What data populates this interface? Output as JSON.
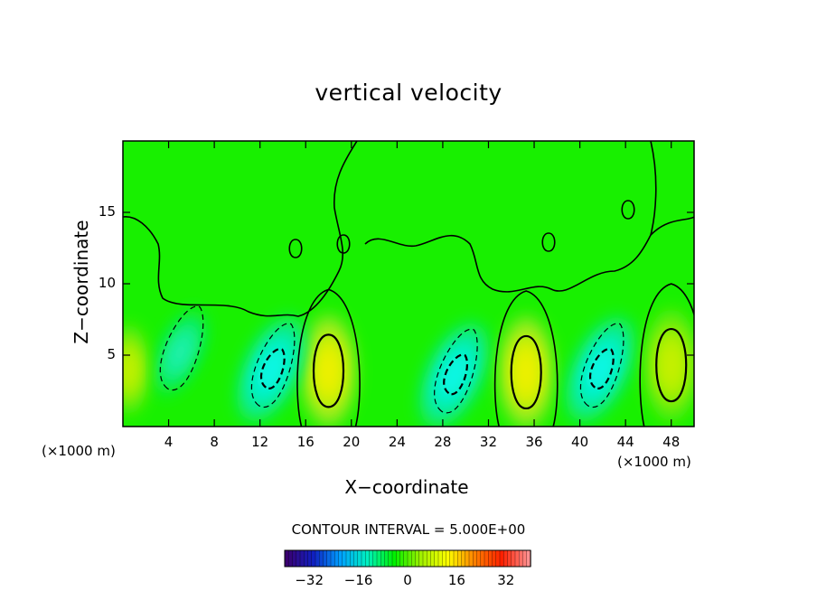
{
  "chart_data": {
    "type": "heatmap",
    "title": "vertical velocity",
    "xlabel": "X−coordinate",
    "ylabel": "Z−coordinate",
    "x_unit_label": "(×1000 m)",
    "z_unit_label": "(×1000 m)",
    "xlim": [
      0,
      50
    ],
    "ylim": [
      0,
      20
    ],
    "x_ticks": [
      "4",
      "8",
      "12",
      "16",
      "20",
      "24",
      "28",
      "32",
      "36",
      "40",
      "44",
      "48"
    ],
    "y_ticks": [
      "5",
      "10",
      "15"
    ],
    "contour_interval_label": "CONTOUR INTERVAL = 5.000E+00",
    "colorbar": {
      "range": [
        -40,
        40
      ],
      "ticks": [
        "−32",
        "−16",
        "0",
        "16",
        "32"
      ],
      "colormap": [
        "#3a0070",
        "#1020c0",
        "#00a0ff",
        "#00f0c0",
        "#00f000",
        "#a0f000",
        "#ffff00",
        "#ff8000",
        "#ff2000",
        "#ff9090"
      ]
    },
    "features": [
      {
        "type": "updraft",
        "x": 18,
        "z": 3.9,
        "value": 16
      },
      {
        "type": "downdraft",
        "x": 13,
        "z": 4.0,
        "value": -16
      },
      {
        "type": "downdraft",
        "x": 29,
        "z": 3.6,
        "value": -16
      },
      {
        "type": "updraft",
        "x": 35.3,
        "z": 3.8,
        "value": 18
      },
      {
        "type": "downdraft",
        "x": 41.8,
        "z": 4.0,
        "value": -18
      },
      {
        "type": "updraft",
        "x": 48,
        "z": 4.3,
        "value": 14
      },
      {
        "type": "downdraft",
        "x": 5,
        "z": 5.2,
        "value": -8
      },
      {
        "type": "updraft",
        "x": 0.5,
        "z": 4.0,
        "value": 8
      }
    ],
    "grid": false,
    "background_value": 0
  }
}
